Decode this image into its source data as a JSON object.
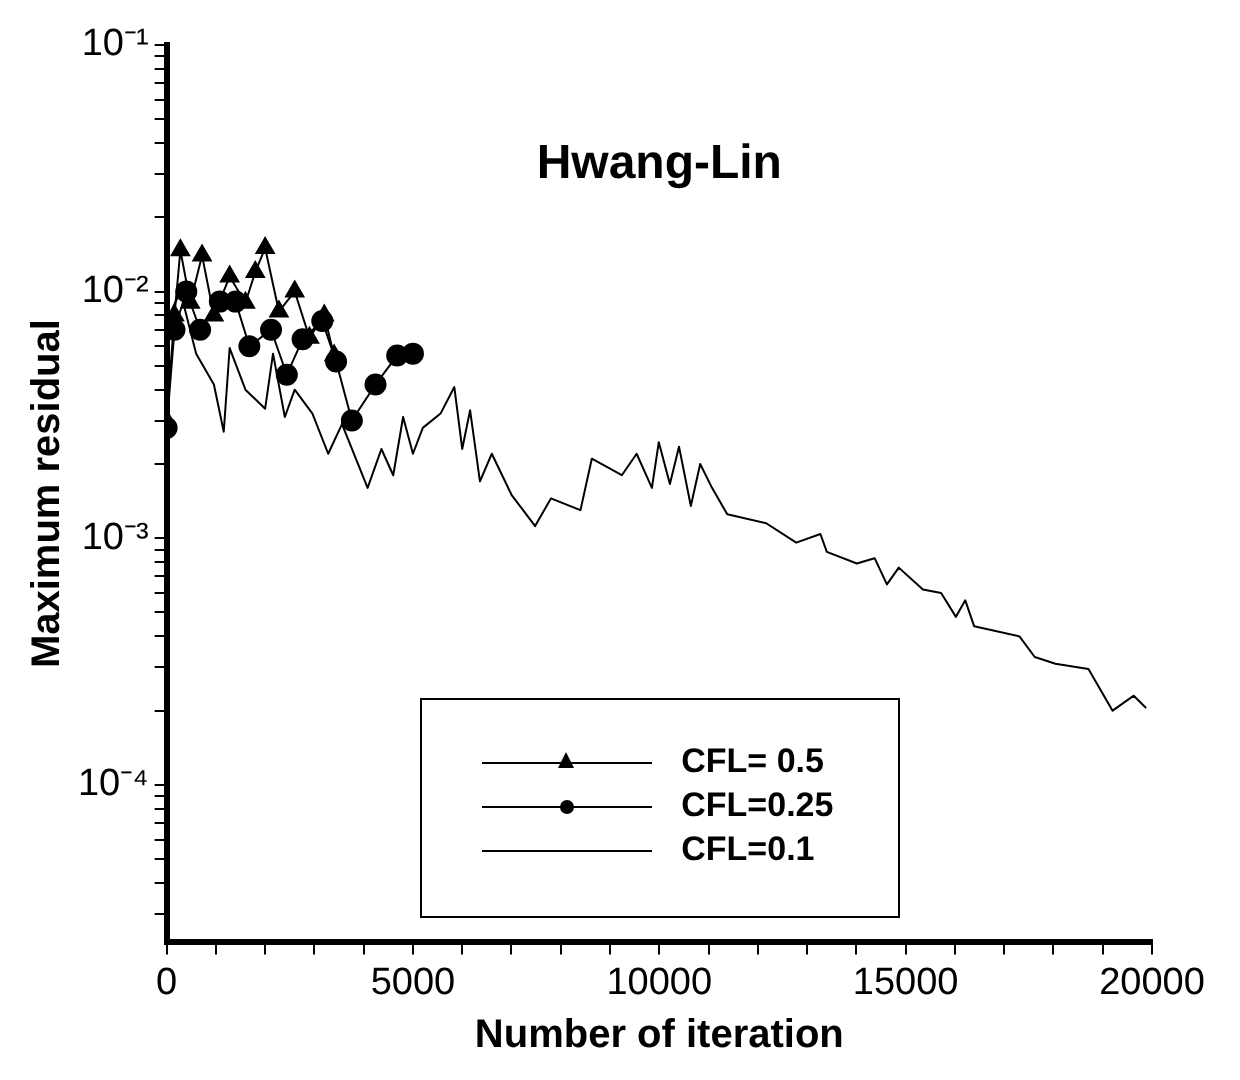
{
  "chart_data": {
    "type": "line",
    "title": "Hwang-Lin",
    "xlabel": "Number of iteration",
    "ylabel": "Maximum residual",
    "log": "y",
    "grid": false,
    "legend": "bottom",
    "line_style": "solid",
    "xlim": [
      0,
      20000
    ],
    "ylim": [
      2.3e-05,
      0.1
    ],
    "xticks": [
      0,
      {
        "value": 1000,
        "label": null
      },
      {
        "value": 2000,
        "label": null
      },
      {
        "value": 3000,
        "label": null
      },
      {
        "value": 4000,
        "label": null
      },
      5000,
      {
        "value": 6000,
        "label": null
      },
      {
        "value": 7000,
        "label": null
      },
      {
        "value": 8000,
        "label": null
      },
      {
        "value": 9000,
        "label": null
      },
      10000,
      {
        "value": 11000,
        "label": null
      },
      {
        "value": 12000,
        "label": null
      },
      {
        "value": 13000,
        "label": null
      },
      {
        "value": 14000,
        "label": null
      },
      15000,
      {
        "value": 16000,
        "label": null
      },
      {
        "value": 17000,
        "label": null
      },
      {
        "value": 18000,
        "label": null
      },
      {
        "value": 19000,
        "label": null
      },
      20000
    ],
    "yticks": [
      {
        "value": 3e-05,
        "label": null
      },
      {
        "value": 4e-05,
        "label": null
      },
      {
        "value": 5e-05,
        "label": null
      },
      {
        "value": 6e-05,
        "label": null
      },
      {
        "value": 7e-05,
        "label": null
      },
      {
        "value": 8e-05,
        "label": null
      },
      {
        "value": 9e-05,
        "label": null
      },
      {
        "value": 0.0001,
        "label": "10⁻⁴"
      },
      {
        "value": 0.0002,
        "label": null
      },
      {
        "value": 0.0003,
        "label": null
      },
      {
        "value": 0.0004,
        "label": null
      },
      {
        "value": 0.0005,
        "label": null
      },
      {
        "value": 0.0006,
        "label": null
      },
      {
        "value": 0.0007,
        "label": null
      },
      {
        "value": 0.0008,
        "label": null
      },
      {
        "value": 0.0009,
        "label": null
      },
      {
        "value": 0.001,
        "label": "10⁻³"
      },
      {
        "value": 0.002,
        "label": null
      },
      {
        "value": 0.003,
        "label": null
      },
      {
        "value": 0.004,
        "label": null
      },
      {
        "value": 0.005,
        "label": null
      },
      {
        "value": 0.006,
        "label": null
      },
      {
        "value": 0.007,
        "label": null
      },
      {
        "value": 0.008,
        "label": null
      },
      {
        "value": 0.009,
        "label": null
      },
      {
        "value": 0.01,
        "label": "10⁻²"
      },
      {
        "value": 0.02,
        "label": null
      },
      {
        "value": 0.03,
        "label": null
      },
      {
        "value": 0.04,
        "label": null
      },
      {
        "value": 0.05,
        "label": null
      },
      {
        "value": 0.06,
        "label": null
      },
      {
        "value": 0.07,
        "label": null
      },
      {
        "value": 0.08,
        "label": null
      },
      {
        "value": 0.09,
        "label": null
      },
      {
        "value": 0.1,
        "label": "10⁻¹"
      }
    ],
    "series": [
      {
        "name": "CFL= 0.5",
        "color": "#000000",
        "marker": "triangle",
        "x": [
          0,
          160,
          280,
          480,
          720,
          960,
          1280,
          1600,
          1800,
          2000,
          2280,
          2600,
          2900,
          3200,
          3400
        ],
        "values": [
          0.003,
          0.008,
          0.0147,
          0.009,
          0.014,
          0.008,
          0.0115,
          0.009,
          0.012,
          0.015,
          0.0083,
          0.01,
          0.0065,
          0.008,
          0.0055
        ]
      },
      {
        "name": "CFL=0.25",
        "color": "#000000",
        "marker": "circle",
        "x": [
          0,
          160,
          400,
          680,
          1080,
          1400,
          1680,
          2120,
          2440,
          2760,
          3160,
          3440,
          3760,
          4240,
          4680,
          5000
        ],
        "values": [
          0.0028,
          0.007,
          0.01,
          0.007,
          0.0091,
          0.0091,
          0.006,
          0.007,
          0.0046,
          0.0064,
          0.0076,
          0.0052,
          0.003,
          0.0042,
          0.0055,
          0.0056
        ]
      },
      {
        "name": "CFL=0.1",
        "color": "#000000",
        "marker": "none",
        "x": [
          0,
          280,
          600,
          960,
          1160,
          1280,
          1600,
          2000,
          2160,
          2400,
          2600,
          2960,
          3280,
          3560,
          4080,
          4360,
          4600,
          4800,
          5000,
          5200,
          5560,
          5840,
          6000,
          6160,
          6360,
          6600,
          7000,
          7480,
          7800,
          8400,
          8630,
          9240,
          9540,
          9850,
          9990,
          10215,
          10400,
          10640,
          10830,
          11070,
          11380,
          12170,
          12780,
          13270,
          13400,
          14010,
          14370,
          14620,
          14860,
          15350,
          15720,
          16020,
          16210,
          16390,
          17310,
          17620,
          18040,
          18710,
          19200,
          19630,
          19880
        ],
        "values": [
          0.0076,
          0.01,
          0.0056,
          0.0042,
          0.0027,
          0.0059,
          0.004,
          0.00335,
          0.0056,
          0.0031,
          0.004,
          0.0032,
          0.0022,
          0.0029,
          0.0016,
          0.0023,
          0.0018,
          0.0031,
          0.0022,
          0.0028,
          0.0032,
          0.0041,
          0.0023,
          0.0033,
          0.0017,
          0.0022,
          0.0015,
          0.00112,
          0.00145,
          0.0013,
          0.0021,
          0.0018,
          0.0022,
          0.0016,
          0.00245,
          0.00166,
          0.00235,
          0.00135,
          0.002,
          0.0016,
          0.00125,
          0.00115,
          0.00096,
          0.00104,
          0.00088,
          0.00079,
          0.00083,
          0.00065,
          0.00076,
          0.00062,
          0.0006,
          0.00048,
          0.00056,
          0.00044,
          0.0004,
          0.00033,
          0.00031,
          0.000295,
          0.0002,
          0.00023,
          0.000205
        ]
      }
    ]
  }
}
